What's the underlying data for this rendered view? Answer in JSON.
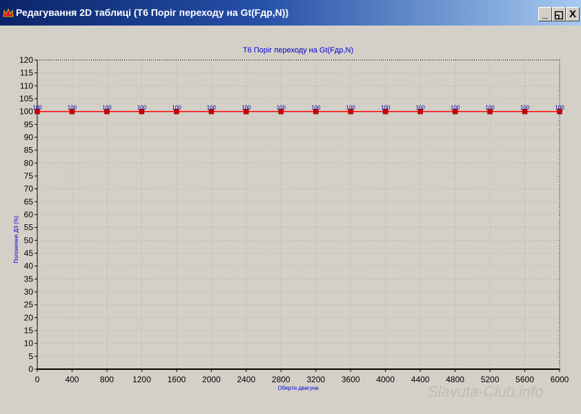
{
  "window": {
    "title": "Редагування 2D таблиці (Т6 Поріг переходу на Gt(Fдр,N))",
    "minimize_label": "_",
    "maximize_label": "◱",
    "close_label": "X"
  },
  "watermark": "Slavuta-Club.info",
  "chart_data": {
    "type": "line",
    "title": "Т6 Поріг переходу на Gt(Fдр,N)",
    "xlabel": "Оберти двигуна",
    "ylabel": "Положення ДЗ (%)",
    "x": [
      0,
      400,
      800,
      1200,
      1600,
      2000,
      2400,
      2800,
      3200,
      3600,
      4000,
      4400,
      4800,
      5200,
      5600,
      6000
    ],
    "series": [
      {
        "values": [
          100,
          100,
          100,
          100,
          100,
          100,
          100,
          100,
          100,
          100,
          100,
          100,
          100,
          100,
          100,
          100
        ],
        "color": "#ff0000",
        "marker_color": "#cc0000",
        "label_color": "#0000aa"
      }
    ],
    "xlim": [
      0,
      6000
    ],
    "ylim": [
      0,
      120
    ],
    "xticks": [
      "0",
      "400",
      "800",
      "1200",
      "1600",
      "2000",
      "2400",
      "2800",
      "3200",
      "3600",
      "4000",
      "4400",
      "4800",
      "5200",
      "5600",
      "6000"
    ],
    "yticks": [
      "0",
      "5",
      "10",
      "15",
      "20",
      "25",
      "30",
      "35",
      "40",
      "45",
      "50",
      "55",
      "60",
      "65",
      "70",
      "75",
      "80",
      "85",
      "90",
      "95",
      "100",
      "105",
      "110",
      "115",
      "120"
    ],
    "grid": true,
    "title_color": "#0000cc",
    "axis_label_color": "#0000cc"
  }
}
